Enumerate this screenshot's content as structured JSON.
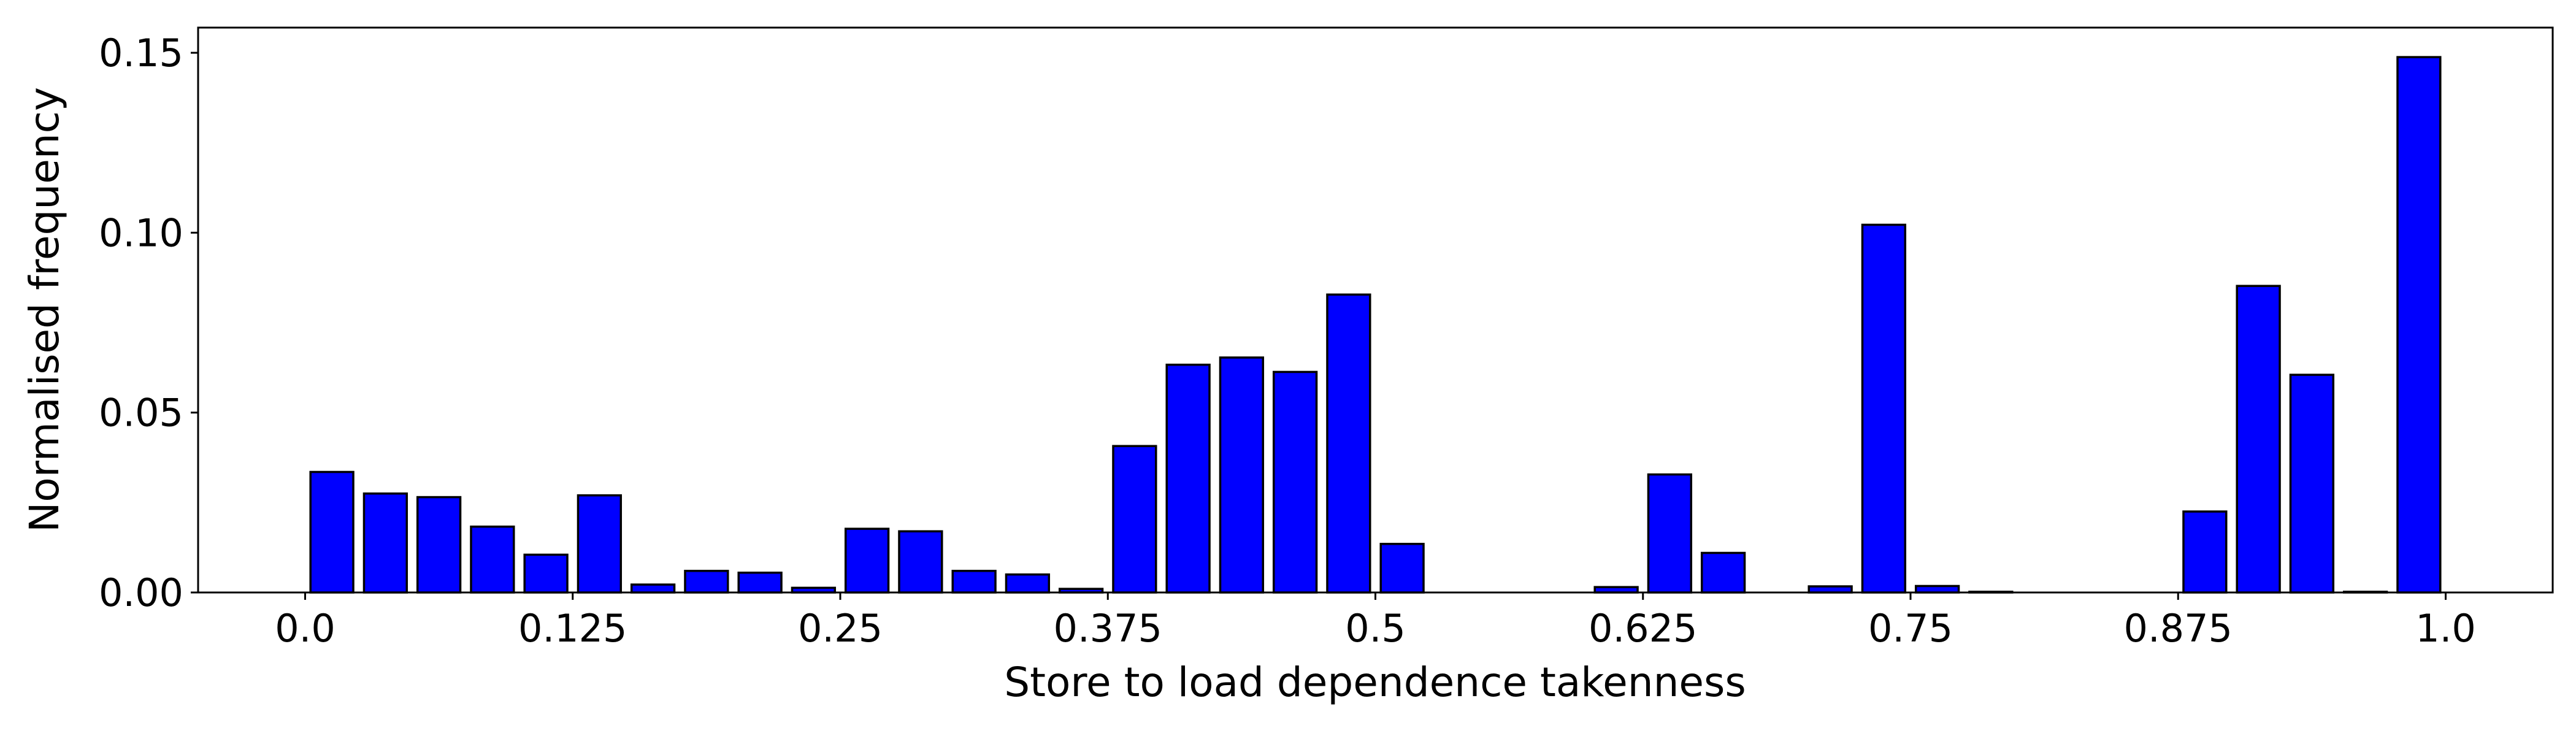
{
  "chart_data": {
    "type": "bar",
    "title": "",
    "xlabel": "Store to load dependence takenness",
    "ylabel": "Normalised frequency",
    "xlim": [
      -0.05,
      1.05
    ],
    "ylim": [
      0.0,
      0.157
    ],
    "xticks": [
      0.0,
      0.125,
      0.25,
      0.375,
      0.5,
      0.625,
      0.75,
      0.875,
      1.0
    ],
    "xtick_labels": [
      "0.0",
      "0.125",
      "0.25",
      "0.375",
      "0.5",
      "0.625",
      "0.75",
      "0.875",
      "1.0"
    ],
    "yticks": [
      0.0,
      0.05,
      0.1,
      0.15
    ],
    "ytick_labels": [
      "0.00",
      "0.05",
      "0.10",
      "0.15"
    ],
    "grid": false,
    "bar_width": 0.02,
    "bar_color": "#0000ff",
    "edge_color": "#000000",
    "x": [
      0.0125,
      0.0375,
      0.0625,
      0.0875,
      0.1125,
      0.1375,
      0.1625,
      0.1875,
      0.2125,
      0.2375,
      0.2625,
      0.2875,
      0.3125,
      0.3375,
      0.3625,
      0.3875,
      0.4125,
      0.4375,
      0.4625,
      0.4875,
      0.5125,
      0.5375,
      0.5625,
      0.5875,
      0.6125,
      0.6375,
      0.6625,
      0.6875,
      0.7125,
      0.7375,
      0.7625,
      0.7875,
      0.8125,
      0.8375,
      0.8625,
      0.8875,
      0.9125,
      0.9375,
      0.9625,
      0.9875
    ],
    "values": [
      0.0335,
      0.0275,
      0.0265,
      0.0183,
      0.0105,
      0.027,
      0.0022,
      0.006,
      0.0055,
      0.0013,
      0.0177,
      0.017,
      0.006,
      0.005,
      0.001,
      0.0407,
      0.0633,
      0.0653,
      0.0613,
      0.0828,
      0.0135,
      0.0,
      0.0,
      0.0,
      0.0015,
      0.0328,
      0.011,
      0.0,
      0.0017,
      0.1022,
      0.0018,
      0.0002,
      0.0,
      0.0,
      0.0,
      0.0225,
      0.0852,
      0.0605,
      0.0002,
      0.1488
    ]
  }
}
